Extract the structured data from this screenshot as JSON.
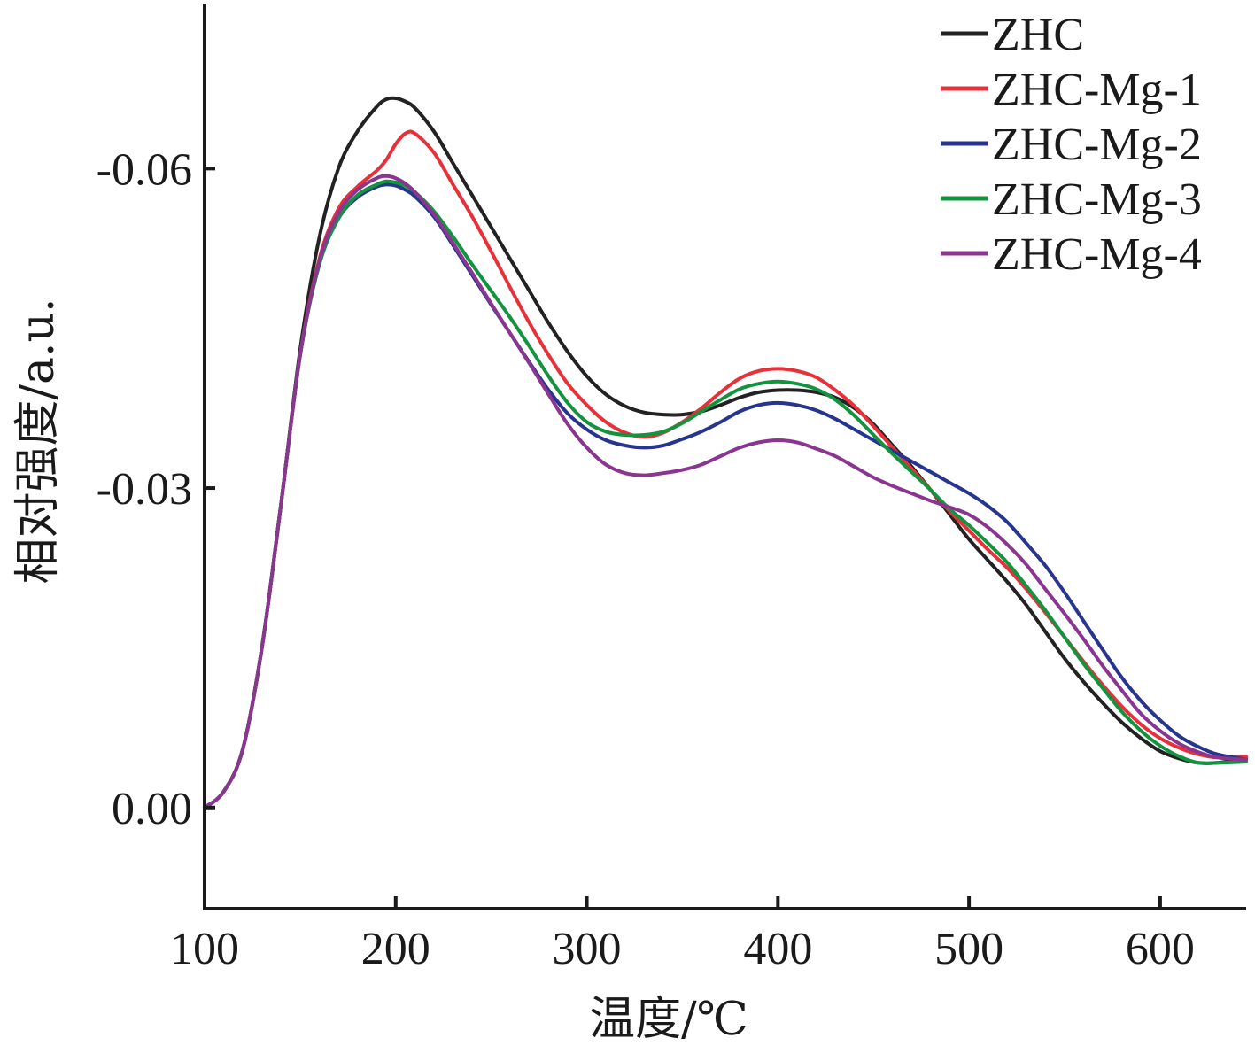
{
  "chart_data": {
    "type": "line",
    "xlabel": "温度/℃",
    "ylabel": "相对强度/a.u.",
    "xlim": [
      100,
      645
    ],
    "ylim": [
      0.0095,
      -0.0755
    ],
    "y_axis_inverted": true,
    "x_ticks": [
      100,
      200,
      300,
      400,
      500,
      600
    ],
    "x_tick_labels": [
      "100",
      "200",
      "300",
      "400",
      "500",
      "600"
    ],
    "y_ticks": [
      -0.06,
      -0.03,
      0.0
    ],
    "y_tick_labels": [
      "-0.06",
      "-0.03",
      "0.00"
    ],
    "grid": false,
    "legend_position": "top-right",
    "colors": {
      "ZHC": "#222222",
      "ZHC-Mg-1": "#e8303a",
      "ZHC-Mg-2": "#27358f",
      "ZHC-Mg-3": "#14933f",
      "ZHC-Mg-4": "#8a358f"
    },
    "x": [
      100,
      110,
      120,
      130,
      140,
      150,
      160,
      170,
      180,
      190,
      195,
      200,
      205,
      210,
      220,
      230,
      240,
      250,
      260,
      270,
      280,
      290,
      300,
      310,
      320,
      330,
      340,
      350,
      360,
      370,
      380,
      390,
      400,
      410,
      420,
      430,
      440,
      450,
      460,
      470,
      480,
      490,
      500,
      510,
      520,
      530,
      540,
      550,
      560,
      570,
      580,
      590,
      600,
      610,
      620,
      630,
      645
    ],
    "series": [
      {
        "name": "ZHC",
        "values": [
          0.0,
          -0.0015,
          -0.0055,
          -0.015,
          -0.0285,
          -0.043,
          -0.0535,
          -0.06,
          -0.0635,
          -0.0658,
          -0.0665,
          -0.0666,
          -0.0663,
          -0.0657,
          -0.0635,
          -0.0605,
          -0.0575,
          -0.0545,
          -0.0515,
          -0.0485,
          -0.0455,
          -0.0428,
          -0.0405,
          -0.0388,
          -0.0377,
          -0.0371,
          -0.0369,
          -0.0369,
          -0.0372,
          -0.0378,
          -0.0385,
          -0.039,
          -0.0392,
          -0.0392,
          -0.039,
          -0.0385,
          -0.0375,
          -0.036,
          -0.034,
          -0.032,
          -0.0298,
          -0.0275,
          -0.0252,
          -0.0232,
          -0.0212,
          -0.019,
          -0.0165,
          -0.014,
          -0.0118,
          -0.0098,
          -0.008,
          -0.0065,
          -0.0053,
          -0.0046,
          -0.0042,
          -0.0042,
          -0.0046
        ]
      },
      {
        "name": "ZHC-Mg-1",
        "values": [
          0.0,
          -0.0015,
          -0.0055,
          -0.015,
          -0.0285,
          -0.0425,
          -0.0515,
          -0.0562,
          -0.0583,
          -0.0598,
          -0.0608,
          -0.0623,
          -0.0633,
          -0.0633,
          -0.0615,
          -0.0585,
          -0.0555,
          -0.0522,
          -0.0488,
          -0.0455,
          -0.0425,
          -0.0398,
          -0.0378,
          -0.0362,
          -0.0352,
          -0.0348,
          -0.0352,
          -0.0362,
          -0.0375,
          -0.039,
          -0.0403,
          -0.041,
          -0.0412,
          -0.041,
          -0.0404,
          -0.0392,
          -0.0377,
          -0.0358,
          -0.0338,
          -0.0318,
          -0.0298,
          -0.0278,
          -0.026,
          -0.0242,
          -0.0225,
          -0.0205,
          -0.0183,
          -0.016,
          -0.0137,
          -0.0115,
          -0.0095,
          -0.0078,
          -0.0065,
          -0.0056,
          -0.005,
          -0.0047,
          -0.0048
        ]
      },
      {
        "name": "ZHC-Mg-2",
        "values": [
          0.0,
          -0.0015,
          -0.0055,
          -0.015,
          -0.0285,
          -0.0425,
          -0.051,
          -0.0553,
          -0.0573,
          -0.0583,
          -0.0585,
          -0.0584,
          -0.058,
          -0.0574,
          -0.0555,
          -0.0528,
          -0.05,
          -0.0472,
          -0.0445,
          -0.0418,
          -0.0392,
          -0.037,
          -0.0355,
          -0.0345,
          -0.034,
          -0.0338,
          -0.034,
          -0.0346,
          -0.0353,
          -0.0362,
          -0.0372,
          -0.0378,
          -0.038,
          -0.0378,
          -0.0373,
          -0.0365,
          -0.0355,
          -0.0345,
          -0.0335,
          -0.0325,
          -0.0315,
          -0.0305,
          -0.0295,
          -0.0283,
          -0.0268,
          -0.0248,
          -0.0227,
          -0.0202,
          -0.0175,
          -0.0148,
          -0.0122,
          -0.01,
          -0.0082,
          -0.0067,
          -0.0057,
          -0.005,
          -0.0045
        ]
      },
      {
        "name": "ZHC-Mg-3",
        "values": [
          0.0,
          -0.0015,
          -0.0055,
          -0.015,
          -0.0285,
          -0.0425,
          -0.051,
          -0.0553,
          -0.0575,
          -0.0585,
          -0.0588,
          -0.0587,
          -0.0584,
          -0.0578,
          -0.056,
          -0.0536,
          -0.051,
          -0.0485,
          -0.046,
          -0.0433,
          -0.0405,
          -0.038,
          -0.0362,
          -0.0353,
          -0.035,
          -0.035,
          -0.0353,
          -0.0361,
          -0.0372,
          -0.0383,
          -0.0393,
          -0.0398,
          -0.04,
          -0.0398,
          -0.0393,
          -0.0383,
          -0.0368,
          -0.035,
          -0.0332,
          -0.0315,
          -0.0298,
          -0.028,
          -0.0265,
          -0.0248,
          -0.023,
          -0.0208,
          -0.0185,
          -0.016,
          -0.0135,
          -0.0112,
          -0.009,
          -0.0072,
          -0.0058,
          -0.0048,
          -0.0042,
          -0.0042,
          -0.0043
        ]
      },
      {
        "name": "ZHC-Mg-4",
        "values": [
          0.0,
          -0.0015,
          -0.0055,
          -0.015,
          -0.0285,
          -0.0425,
          -0.0513,
          -0.0558,
          -0.058,
          -0.0591,
          -0.0593,
          -0.0591,
          -0.0586,
          -0.0578,
          -0.0557,
          -0.053,
          -0.0502,
          -0.0473,
          -0.0445,
          -0.0417,
          -0.0388,
          -0.036,
          -0.0338,
          -0.0322,
          -0.0314,
          -0.0312,
          -0.0314,
          -0.0317,
          -0.0322,
          -0.033,
          -0.0338,
          -0.0343,
          -0.0345,
          -0.0343,
          -0.0337,
          -0.033,
          -0.032,
          -0.031,
          -0.0302,
          -0.0295,
          -0.0288,
          -0.0282,
          -0.0275,
          -0.0263,
          -0.0247,
          -0.0228,
          -0.0205,
          -0.0182,
          -0.0158,
          -0.0133,
          -0.011,
          -0.0088,
          -0.0072,
          -0.006,
          -0.0052,
          -0.0047,
          -0.0045
        ]
      }
    ]
  }
}
